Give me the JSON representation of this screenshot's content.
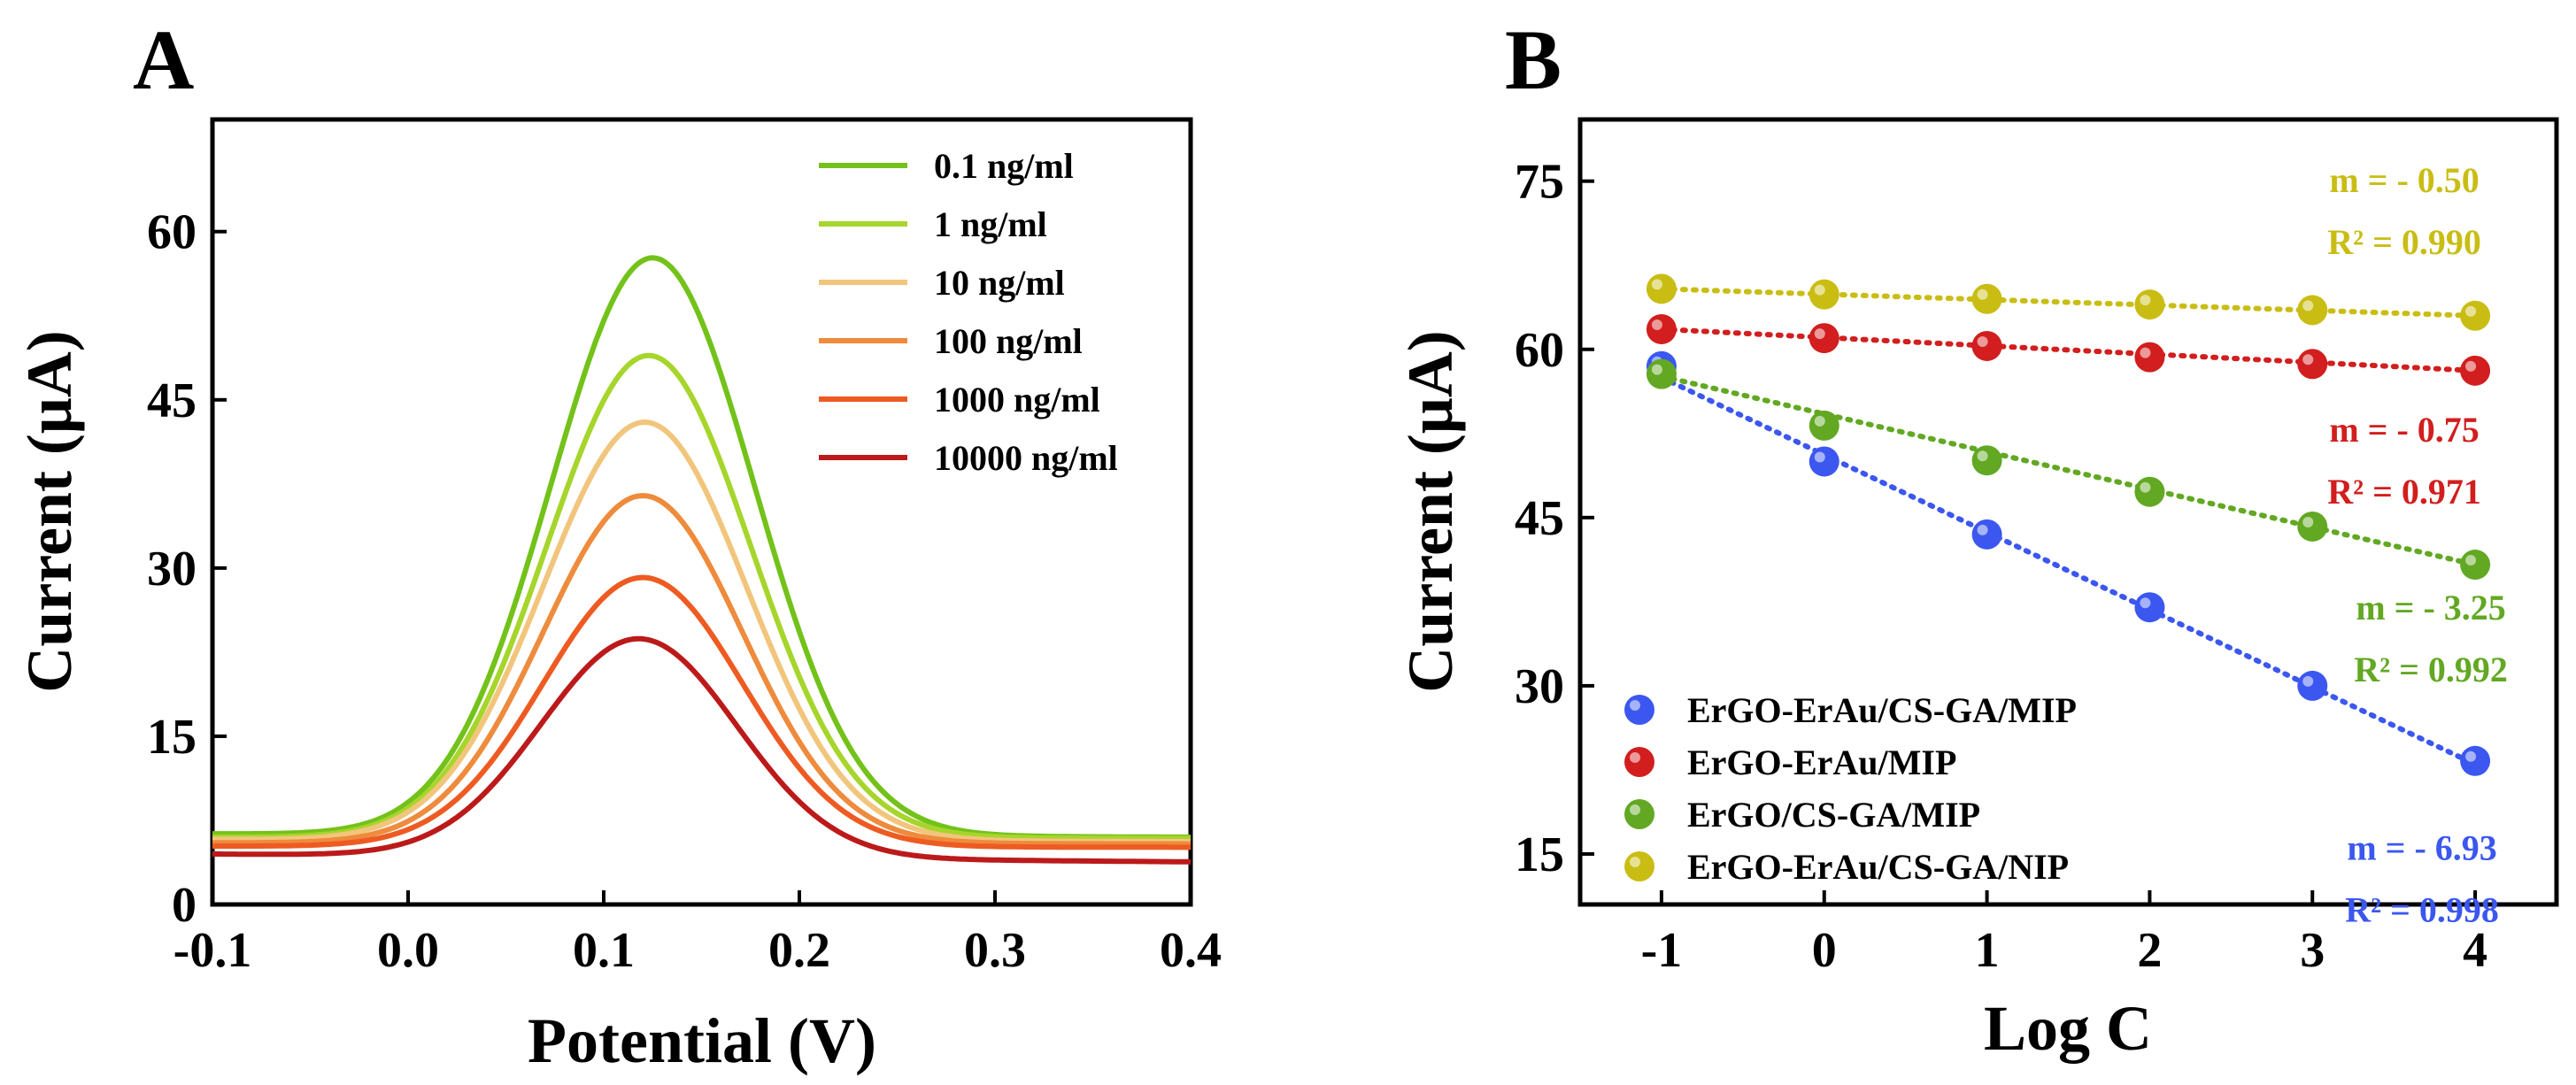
{
  "chart_data": [
    {
      "panel": "A",
      "type": "line",
      "xlabel": "Potential (V)",
      "ylabel": "Current (μA)",
      "xlim": [
        -0.1,
        0.4
      ],
      "ylim": [
        0,
        70
      ],
      "xticks": [
        -0.1,
        0.0,
        0.1,
        0.2,
        0.3,
        0.4
      ],
      "xtick_labels": [
        "-0.1",
        "0.0",
        "0.1",
        "0.2",
        "0.3",
        "0.4"
      ],
      "yticks": [
        0,
        15,
        30,
        45,
        60
      ],
      "ytick_labels": [
        "0",
        "15",
        "30",
        "45",
        "60"
      ],
      "legend_position": "top-right",
      "series": [
        {
          "name": "0.1 ng/ml",
          "color": "#73C21A",
          "base_start": 6.3,
          "base_end": 6.0,
          "peak_x": 0.125,
          "peak_height": 51.5,
          "width": 0.052
        },
        {
          "name": "1 ng/ml",
          "color": "#A6D52C",
          "base_start": 6.0,
          "base_end": 5.9,
          "peak_x": 0.123,
          "peak_height": 43.0,
          "width": 0.052
        },
        {
          "name": "10 ng/ml",
          "color": "#F2C57C",
          "base_start": 5.8,
          "base_end": 5.6,
          "peak_x": 0.121,
          "peak_height": 37.3,
          "width": 0.052
        },
        {
          "name": "100 ng/ml",
          "color": "#EE8B3C",
          "base_start": 5.5,
          "base_end": 5.4,
          "peak_x": 0.12,
          "peak_height": 31.0,
          "width": 0.051
        },
        {
          "name": "1000 ng/ml",
          "color": "#EE5B22",
          "base_start": 5.2,
          "base_end": 5.1,
          "peak_x": 0.12,
          "peak_height": 24.0,
          "width": 0.051
        },
        {
          "name": "10000 ng/ml",
          "color": "#BC1A1A",
          "base_start": 4.5,
          "base_end": 3.8,
          "peak_x": 0.118,
          "peak_height": 19.5,
          "width": 0.05
        }
      ]
    },
    {
      "panel": "B",
      "type": "scatter",
      "xlabel": "Log C",
      "ylabel": "Current (μA)",
      "xlim": [
        -1.5,
        4.5
      ],
      "ylim": [
        10.5,
        80.5
      ],
      "xticks": [
        -1,
        0,
        1,
        2,
        3,
        4
      ],
      "xtick_labels": [
        "-1",
        "0",
        "1",
        "2",
        "3",
        "4"
      ],
      "yticks": [
        15,
        30,
        45,
        60,
        75
      ],
      "ytick_labels": [
        "15",
        "30",
        "45",
        "60",
        "75"
      ],
      "legend_position": "bottom-left",
      "x": [
        -1,
        0,
        1,
        2,
        3,
        4
      ],
      "series": [
        {
          "name": "ErGO-ErAu/CS-GA/MIP",
          "color": "#3B57F0",
          "values": [
            58.5,
            50.0,
            43.5,
            37.0,
            30.0,
            23.3
          ],
          "fit_start": 57.5,
          "fit_end": 23.0,
          "slope_label": "m = - 6.93",
          "r2_label": "R² = 0.998"
        },
        {
          "name": "ErGO-ErAu/MIP",
          "color": "#D21E1E",
          "values": [
            61.8,
            61.0,
            60.3,
            59.3,
            58.7,
            58.1
          ],
          "fit_start": 61.8,
          "fit_end": 58.1,
          "slope_label": "m = - 0.75",
          "r2_label": "R² = 0.971"
        },
        {
          "name": "ErGO/CS-GA/MIP",
          "color": "#62A823",
          "values": [
            57.8,
            53.2,
            50.1,
            47.3,
            44.2,
            40.8
          ],
          "fit_start": 57.6,
          "fit_end": 40.8,
          "slope_label": "m = - 3.25",
          "r2_label": "R² = 0.992"
        },
        {
          "name": "ErGO-ErAu/CS-GA/NIP",
          "color": "#C9BD14",
          "values": [
            65.4,
            64.9,
            64.5,
            64.0,
            63.5,
            63.0
          ],
          "fit_start": 65.4,
          "fit_end": 63.0,
          "slope_label": "m = - 0.50",
          "r2_label": "R² = 0.990"
        }
      ]
    }
  ]
}
